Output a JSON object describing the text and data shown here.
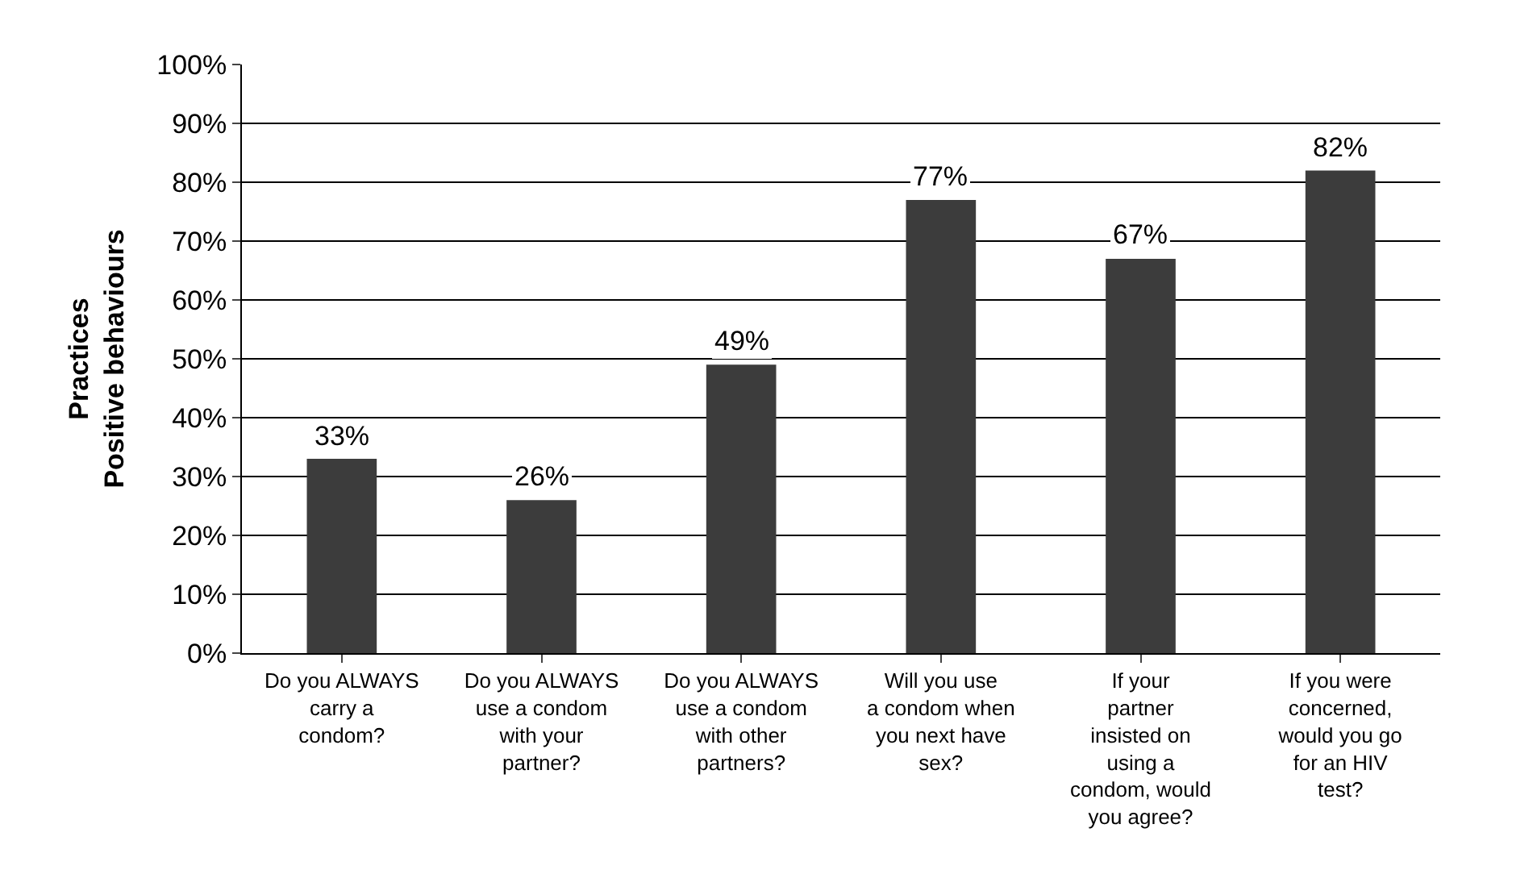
{
  "chart_data": {
    "type": "bar",
    "ylabel": "Practices\nPositive behaviours",
    "categories": [
      "Do you ALWAYS carry a condom?",
      "Do you ALWAYS use a condom with your partner?",
      "Do you ALWAYS use a condom with other partners?",
      "Will you use a condom when you next have sex?",
      "If your partner insisted on using a condom, would you agree?",
      "If you were concerned, would you go for an HIV test?"
    ],
    "values": [
      33,
      26,
      49,
      77,
      67,
      82
    ],
    "value_labels": [
      "33%",
      "26%",
      "49%",
      "77%",
      "67%",
      "82%"
    ],
    "color": "#3c3c3c",
    "ylim": [
      0,
      100
    ],
    "yticks": [
      {
        "value": 0,
        "label": "0%"
      },
      {
        "value": 10,
        "label": "10%"
      },
      {
        "value": 20,
        "label": "20%"
      },
      {
        "value": 30,
        "label": "30%"
      },
      {
        "value": 40,
        "label": "40%"
      },
      {
        "value": 50,
        "label": "50%"
      },
      {
        "value": 60,
        "label": "60%"
      },
      {
        "value": 70,
        "label": "70%"
      },
      {
        "value": 80,
        "label": "80%"
      },
      {
        "value": 90,
        "label": "90%"
      },
      {
        "value": 100,
        "label": "100%"
      }
    ],
    "grid": "y",
    "legend": false
  }
}
